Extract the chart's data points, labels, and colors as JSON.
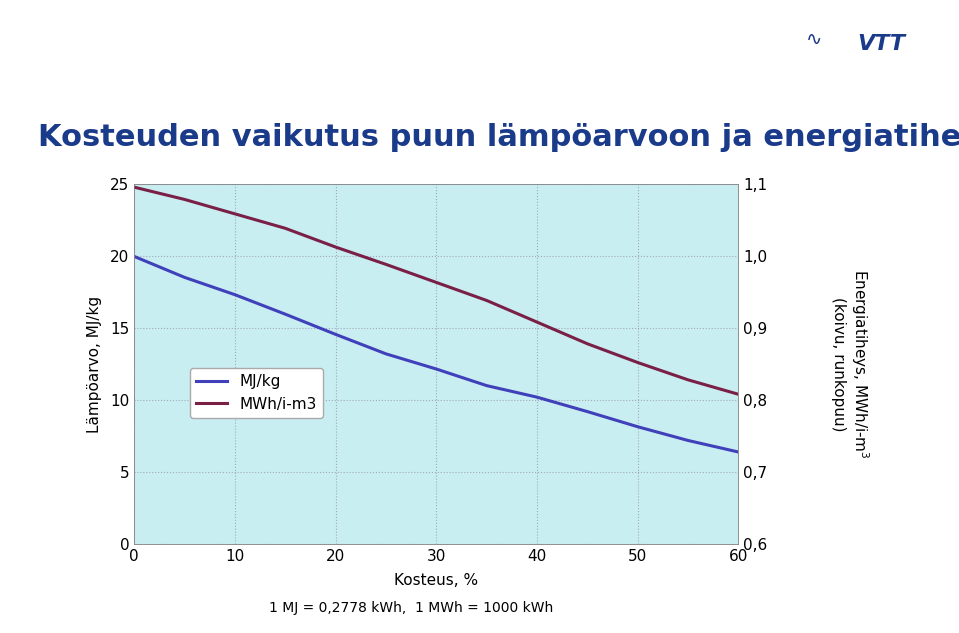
{
  "title": "Kosteuden vaikutus puun lämpöarvoon ja energiatiheyteen",
  "subtitle": "1 MJ = 0,2778 kWh,  1 MWh = 1000 kWh",
  "xlabel": "Kosteus, %",
  "ylabel_left": "Lämpöarvo, MJ/kg",
  "x_data": [
    0,
    5,
    10,
    15,
    20,
    25,
    30,
    35,
    40,
    45,
    50,
    55,
    60
  ],
  "mj_kg": [
    19.95,
    18.5,
    17.3,
    15.95,
    14.55,
    13.2,
    12.15,
    11.0,
    10.2,
    9.2,
    8.15,
    7.2,
    6.4
  ],
  "mwh_m3": [
    1.095,
    1.078,
    1.058,
    1.038,
    1.012,
    0.988,
    0.963,
    0.938,
    0.908,
    0.878,
    0.852,
    0.828,
    0.808
  ],
  "line_color_mj": "#4040bb",
  "line_color_mwh": "#7a1f45",
  "bg_color_outer": "#ffffff",
  "bg_color_header": "#22aadd",
  "bg_color_chart": "#c8eef2",
  "header_title_color": "#1a3a8a",
  "grid_color": "#9999aa",
  "xlim": [
    0,
    60
  ],
  "ylim_left": [
    0,
    25
  ],
  "ylim_right": [
    0.6,
    1.1
  ],
  "yticks_left": [
    0,
    5,
    10,
    15,
    20,
    25
  ],
  "yticks_right": [
    0.6,
    0.7,
    0.8,
    0.9,
    1.0,
    1.1
  ],
  "xticks": [
    0,
    10,
    20,
    30,
    40,
    50,
    60
  ],
  "title_fontsize": 22,
  "axis_label_fontsize": 11,
  "tick_fontsize": 11,
  "legend_labels": [
    "MJ/kg",
    "MWh/i-m3"
  ]
}
